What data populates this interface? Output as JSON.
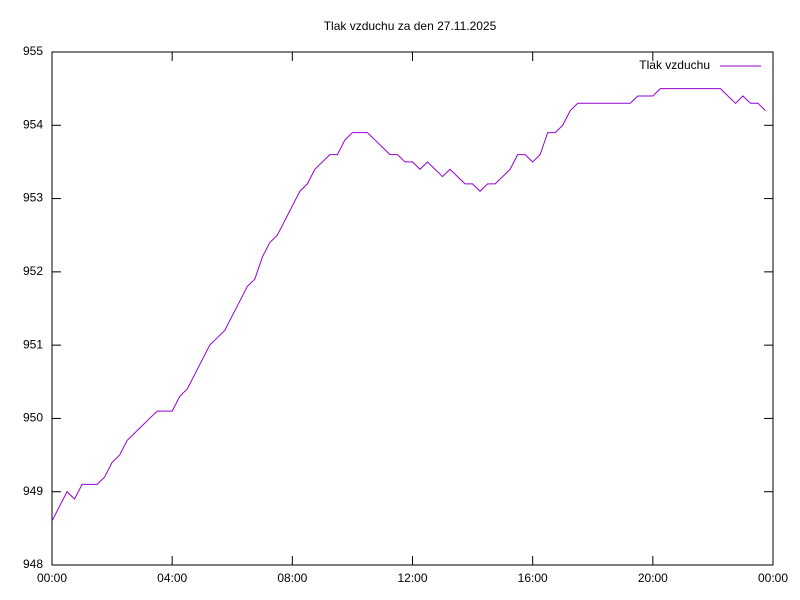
{
  "chart_data": {
    "type": "line",
    "title": "Tlak vzduchu za den 27.11.2025",
    "x": [
      0,
      0.25,
      0.5,
      0.75,
      1,
      1.25,
      1.5,
      1.75,
      2,
      2.25,
      2.5,
      2.75,
      3,
      3.25,
      3.5,
      3.75,
      4,
      4.25,
      4.5,
      4.75,
      5,
      5.25,
      5.5,
      5.75,
      6,
      6.25,
      6.5,
      6.75,
      7,
      7.25,
      7.5,
      7.75,
      8,
      8.25,
      8.5,
      8.75,
      9,
      9.25,
      9.5,
      9.75,
      10,
      10.25,
      10.5,
      10.75,
      11,
      11.25,
      11.5,
      11.75,
      12,
      12.25,
      12.5,
      12.75,
      13,
      13.25,
      13.5,
      13.75,
      14,
      14.25,
      14.5,
      14.75,
      15,
      15.25,
      15.5,
      15.75,
      16,
      16.25,
      16.5,
      16.75,
      17,
      17.25,
      17.5,
      17.75,
      18,
      18.25,
      18.5,
      18.75,
      19,
      19.25,
      19.5,
      19.75,
      20,
      20.25,
      20.5,
      20.75,
      21,
      21.25,
      21.5,
      21.75,
      22,
      22.25,
      22.5,
      22.75,
      23,
      23.25,
      23.5,
      23.75
    ],
    "series": [
      {
        "name": "Tlak vzduchu",
        "color": "#9400d3",
        "values": [
          948.6,
          948.8,
          949.0,
          948.9,
          949.1,
          949.1,
          949.1,
          949.2,
          949.4,
          949.5,
          949.7,
          949.8,
          949.9,
          950.0,
          950.1,
          950.1,
          950.1,
          950.3,
          950.4,
          950.6,
          950.8,
          951.0,
          951.1,
          951.2,
          951.4,
          951.6,
          951.8,
          951.9,
          952.2,
          952.4,
          952.5,
          952.7,
          952.9,
          953.1,
          953.2,
          953.4,
          953.5,
          953.6,
          953.6,
          953.8,
          953.9,
          953.9,
          953.9,
          953.8,
          953.7,
          953.6,
          953.6,
          953.5,
          953.5,
          953.4,
          953.5,
          953.4,
          953.3,
          953.4,
          953.3,
          953.2,
          953.2,
          953.1,
          953.2,
          953.2,
          953.3,
          953.4,
          953.6,
          953.6,
          953.5,
          953.6,
          953.9,
          953.9,
          954.0,
          954.2,
          954.3,
          954.3,
          954.3,
          954.3,
          954.3,
          954.3,
          954.3,
          954.3,
          954.4,
          954.4,
          954.4,
          954.5,
          954.5,
          954.5,
          954.5,
          954.5,
          954.5,
          954.5,
          954.5,
          954.5,
          954.4,
          954.3,
          954.4,
          954.3,
          954.3,
          954.2
        ]
      }
    ],
    "xlim": [
      0,
      24
    ],
    "xticks": [
      {
        "value": 0,
        "label": "00:00"
      },
      {
        "value": 4,
        "label": "04:00"
      },
      {
        "value": 8,
        "label": "08:00"
      },
      {
        "value": 12,
        "label": "12:00"
      },
      {
        "value": 16,
        "label": "16:00"
      },
      {
        "value": 20,
        "label": "20:00"
      },
      {
        "value": 24,
        "label": "00:00"
      }
    ],
    "ylim": [
      948,
      955
    ],
    "yticks": [
      948,
      949,
      950,
      951,
      952,
      953,
      954,
      955
    ],
    "grid": false,
    "legend": "top-right"
  }
}
